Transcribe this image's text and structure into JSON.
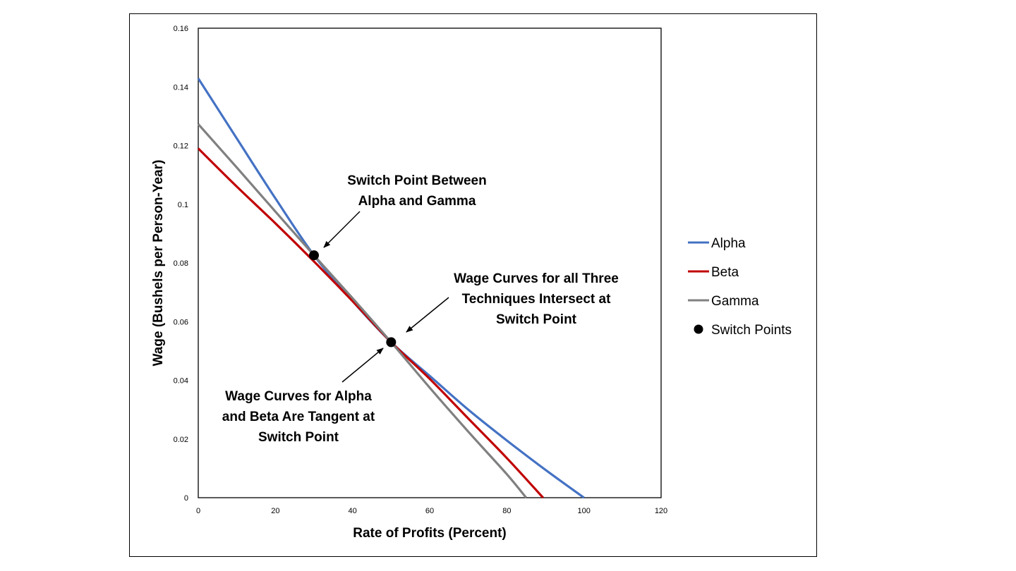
{
  "chart_data": {
    "type": "line",
    "xlabel": "Rate of Profits (Percent)",
    "ylabel": "Wage (Bushels per Person-Year)",
    "xlim": [
      0,
      120
    ],
    "ylim": [
      0,
      0.16
    ],
    "xticks": [
      "0",
      "20",
      "40",
      "60",
      "80",
      "100",
      "120"
    ],
    "yticks": [
      "0",
      "0.02",
      "0.04",
      "0.06",
      "0.08",
      "0.1",
      "0.12",
      "0.14",
      "0.16"
    ],
    "grid": false,
    "legend_position": "right",
    "series": [
      {
        "name": "Alpha",
        "color": "#4472C4",
        "x": [
          0,
          10,
          20,
          30,
          40,
          50,
          60,
          70,
          80,
          90,
          100
        ],
        "y": [
          0.1429,
          0.1224,
          0.102,
          0.0826,
          0.067,
          0.053,
          0.0415,
          0.03,
          0.0195,
          0.0095,
          0.0
        ]
      },
      {
        "name": "Beta",
        "color": "#C00000",
        "x": [
          0,
          10,
          20,
          30,
          40,
          50,
          60,
          70,
          80,
          89.4
        ],
        "y": [
          0.119,
          0.106,
          0.0935,
          0.0805,
          0.067,
          0.053,
          0.0405,
          0.027,
          0.0135,
          0.0
        ]
      },
      {
        "name": "Gamma",
        "color": "#808080",
        "x": [
          0,
          10,
          20,
          30,
          40,
          50,
          60,
          70,
          80,
          85
        ],
        "y": [
          0.1273,
          0.1125,
          0.0975,
          0.0826,
          0.068,
          0.053,
          0.0375,
          0.0225,
          0.008,
          0.0
        ]
      },
      {
        "name": "Switch Points",
        "color": "#000000",
        "marker": "circle",
        "x": [
          30,
          50
        ],
        "y": [
          0.0826,
          0.053
        ]
      }
    ],
    "annotations": [
      {
        "lines": [
          "Switch Point Between",
          "Alpha and Gamma"
        ]
      },
      {
        "lines": [
          "Wage Curves for all Three",
          "Techniques Intersect at",
          "Switch Point"
        ]
      },
      {
        "lines": [
          "Wage Curves for Alpha",
          "and Beta Are Tangent at",
          "Switch Point"
        ]
      }
    ]
  }
}
